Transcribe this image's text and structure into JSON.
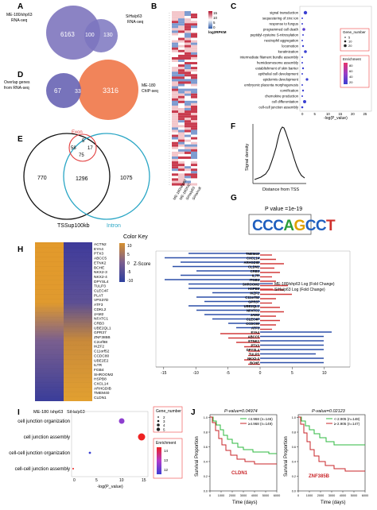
{
  "panels": {
    "A": {
      "letter": "A",
      "left_label_1": "ME-180/shp63",
      "left_label_2": "RNA-seq",
      "right_label_1": "SiHa/p63",
      "right_label_2": "RNA-seq",
      "only_left": "6163",
      "overlap": "100",
      "only_right": "130"
    },
    "B": {
      "letter": "B",
      "legend_title": "log2RPKM",
      "legend_ticks": [
        "15",
        "10",
        "5",
        "0"
      ],
      "columns": [
        "ME-180/shp63",
        "ME-180/NC",
        "SiHa/p63",
        "SiHa/null"
      ]
    },
    "C": {
      "letter": "C",
      "terms": [
        "signal transduction",
        "sequestering of zinc ion",
        "response to fungus",
        "programmed cell death",
        "peptidyl-cysteine S-nitrosylation",
        "neutrophil aggregation",
        "locomotion",
        "keratinization",
        "intermediate filament bundle assembly",
        "hemidesmosome assembly",
        "establishment of skin barrier",
        "epithelial cell development",
        "epidermis development",
        "embryonic placenta morphogenesis",
        "cornification",
        "chemokine production",
        "cell differentiation",
        "cell-cell junction assembly"
      ],
      "x_ticks": [
        "0",
        "5",
        "10",
        "15",
        "20",
        "25"
      ],
      "xlabel": "-log(P_value)",
      "legend_gene_title": "Gene_number",
      "legend_gene_values": [
        "5",
        "10",
        "15",
        "20"
      ],
      "legend_enrich_title": "Enrichment",
      "legend_enrich_values": [
        "20",
        "40",
        "60",
        "80"
      ]
    },
    "D": {
      "letter": "D",
      "left_label_1": "Overlap genes",
      "left_label_2": "from RNA-seq",
      "right_label_1": "ME-180",
      "right_label_2": "ChIP-seq",
      "only_left": "67",
      "overlap": "33",
      "only_right": "3316"
    },
    "E": {
      "letter": "E",
      "exon_label": "Exon",
      "intron_label": "Intron",
      "tss_label": "TSSup100kb",
      "n_exon_only": "5",
      "n_exon_tss": "58",
      "n_exon_intron": "17",
      "n_all_three": "75",
      "n_tss_only": "770",
      "n_tss_intron": "1296",
      "n_intron_only": "1075"
    },
    "F": {
      "letter": "F",
      "ylabel": "Signal density",
      "xlabel": "Distance from TSS"
    },
    "G": {
      "letter": "G",
      "pvalue": "P value =1e-19",
      "motif": "CCCAGCCT"
    },
    "H": {
      "letter": "H",
      "color_key": "Color Key",
      "zscore": "Z-Score",
      "key_ticks": [
        "10",
        "5",
        "0",
        "-5",
        "-10"
      ],
      "genes": [
        "ACTN2",
        "EYA4",
        "PTX3",
        "ABCC5",
        "ETNK2",
        "BCHE",
        "NKX2-3",
        "NKX2-4",
        "DPYSL4",
        "TULP3",
        "CLEC4F",
        "PLAT",
        "VPS37D",
        "ATF3",
        "CDKL2",
        "JAM2",
        "NFATC1",
        "CRB3",
        "UBE2QL1",
        "GPR37",
        "ZNF385B",
        "C2orf88",
        "IKZF2",
        "C11orf52",
        "CCDC80",
        "UBE2E2",
        "ILTR",
        "FGB4",
        "SHROOM2",
        "HSPB8",
        "CXCL14",
        "ARHGDIB",
        "TMEM40",
        "CLDN1"
      ],
      "col_labels": [
        "ME-180 /shp63",
        "SiHa/p63"
      ],
      "bar_genes": [
        "TMEM40",
        "CXCL14",
        "ARHGDIB",
        "CLDN1",
        "CRB3",
        "IL7R",
        "ITGB4",
        "SHROOM2",
        "HSPB8",
        "IKZF2",
        "C11orf52",
        "GPR37",
        "UBE2QL1",
        "NFATC1",
        "JAM2",
        "CLEC4F",
        "CCDC80",
        "ATF3",
        "EYA4",
        "ABCC5",
        "ETNK2",
        "PTX3",
        "DPYSL4",
        "TULP3",
        "NKX2-3",
        "BCHE"
      ],
      "bar_axis_ticks": [
        "-15",
        "-10",
        "-5",
        "0",
        "5",
        "10"
      ],
      "legend_1": "ME-180/shp63 Log (Fold Change)",
      "legend_2": "SiHa/p63 Log (Fold Change)"
    },
    "I": {
      "letter": "I",
      "terms": [
        "cell junction organization",
        "cell junction assembly",
        "cell-cell junction organization",
        "cell-cell junction assembly"
      ],
      "x_ticks": [
        "0",
        "5",
        "10",
        "15"
      ],
      "xlabel": "-log(P_value)",
      "legend_gene_title": "Gene_number",
      "legend_gene_values": [
        "2",
        "3",
        "4",
        "5"
      ],
      "legend_enrich_title": "Enrichment",
      "legend_enrich_values": [
        "14",
        "13",
        "12"
      ]
    },
    "J": {
      "letter": "J",
      "ylabel": "Survival Proportion",
      "xlabel": "Time (days)",
      "left": {
        "pvalue": "P-value=0.04974",
        "gene": "CLDN1",
        "legend_high": "≥4.968 (n=149)",
        "legend_low": "<4.968 (n=146)",
        "x_ticks": [
          "0",
          "1000",
          "2000",
          "3000",
          "4000",
          "5000",
          "6000"
        ],
        "y_ticks": [
          "0.0",
          "0.2",
          "0.4",
          "0.6",
          "0.8",
          "1.0"
        ]
      },
      "right": {
        "pvalue": "P-value=0.02123",
        "gene": "ZNF385B",
        "legend_high": "<-2.905 (n=148)",
        "legend_low": "≥-2.905 (n=147)",
        "x_ticks": [
          "0",
          "1000",
          "2000",
          "3000",
          "4000",
          "5000",
          "6000"
        ],
        "y_ticks": [
          "0.0",
          "0.2",
          "0.4",
          "0.6",
          "0.8",
          "1.0"
        ]
      }
    }
  },
  "colors": {
    "venn_purple": "#8b83c4",
    "venn_blue": "#6c6ab5",
    "venn_orange": "#f1845a",
    "exon_red": "#e23b3b",
    "intron_teal": "#2aa6c5",
    "bar_blue": "#2c4fa8",
    "bar_red": "#d23a3a",
    "survival_green": "#2db83f",
    "survival_red": "#c9262a"
  }
}
